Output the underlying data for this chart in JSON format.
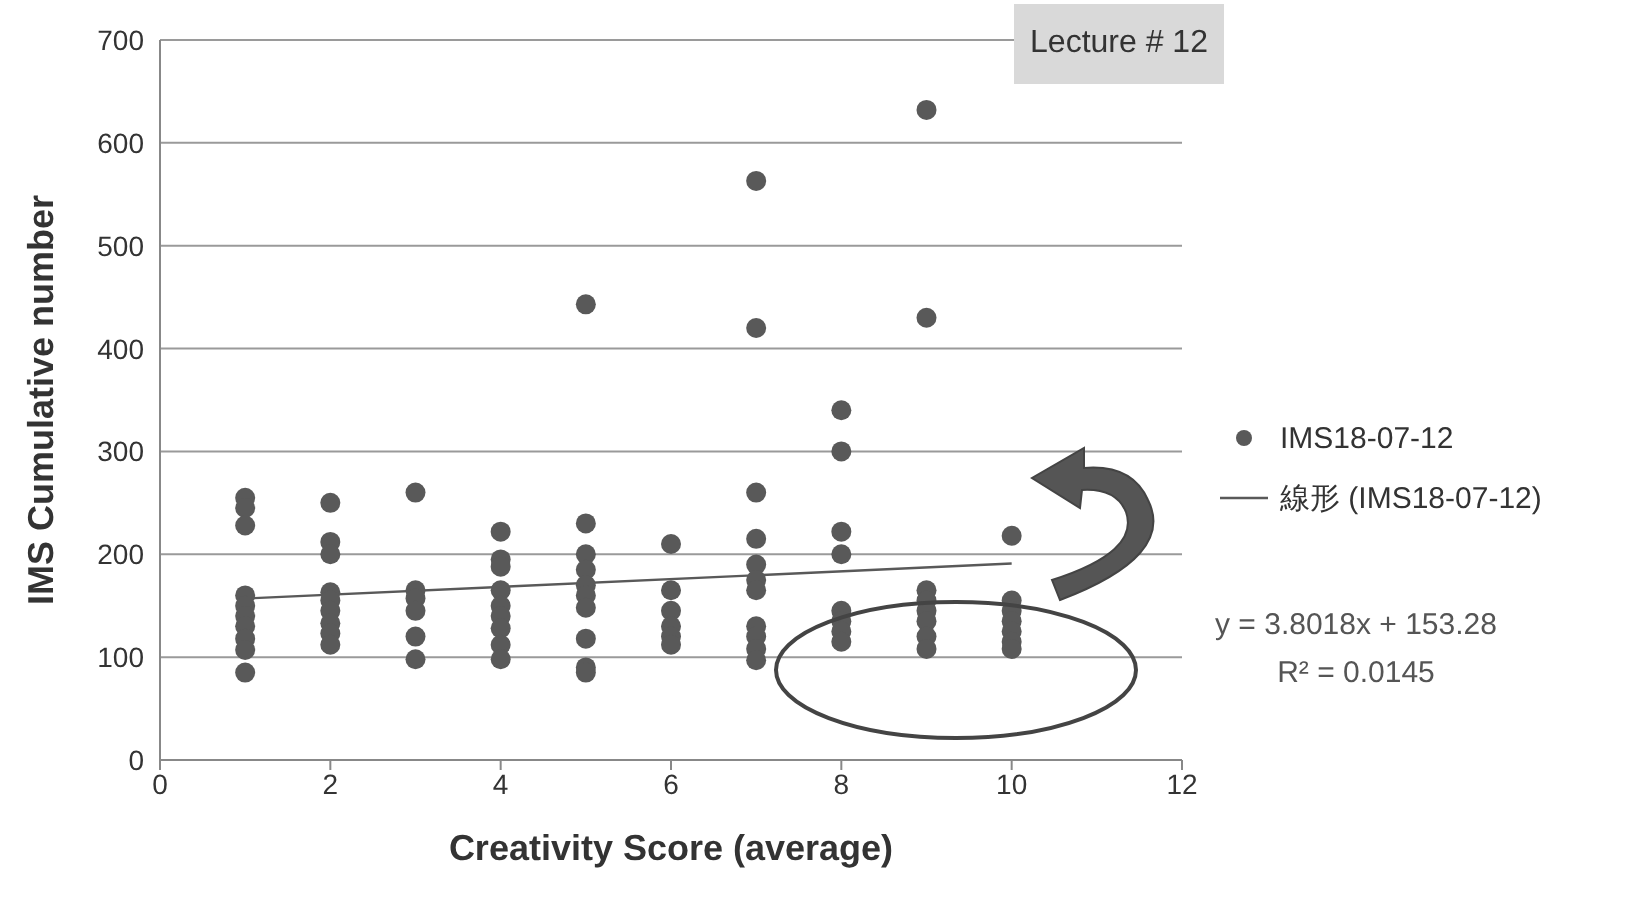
{
  "chart_data": {
    "type": "scatter",
    "xlabel": "Creativity Score (average)",
    "ylabel": "IMS Cumulative number",
    "xlim": [
      0,
      12
    ],
    "xticks": [
      0,
      2,
      4,
      6,
      8,
      10,
      12
    ],
    "ylim": [
      0,
      700
    ],
    "yticks": [
      0,
      100,
      200,
      300,
      400,
      500,
      600,
      700
    ],
    "grid": "y",
    "legend": "right",
    "annotations": [
      "Lecture # 12",
      "y = 3.8018x + 153.28",
      "R² = 0.0145"
    ],
    "series": [
      {
        "name": "IMS18-07-12",
        "marker": "circle",
        "color": "#595959",
        "x": [
          1,
          1,
          1,
          1,
          1,
          1,
          1,
          1,
          1,
          1,
          2,
          2,
          2,
          2,
          2,
          2,
          2,
          2,
          2,
          3,
          3,
          3,
          3,
          3,
          3,
          4,
          4,
          4,
          4,
          4,
          4,
          4,
          4,
          4,
          5,
          5,
          5,
          5,
          5,
          5,
          5,
          5,
          5,
          5,
          6,
          6,
          6,
          6,
          6,
          6,
          7,
          7,
          7,
          7,
          7,
          7,
          7,
          7,
          7,
          7,
          7,
          8,
          8,
          8,
          8,
          8,
          8,
          8,
          8,
          9,
          9,
          9,
          9,
          9,
          9,
          9,
          9,
          10,
          10,
          10,
          10,
          10,
          10,
          10
        ],
        "values": [
          255,
          245,
          228,
          160,
          150,
          140,
          130,
          118,
          107,
          85,
          250,
          212,
          200,
          163,
          155,
          145,
          133,
          123,
          112,
          260,
          165,
          157,
          145,
          120,
          98,
          222,
          195,
          188,
          165,
          150,
          140,
          128,
          112,
          98,
          443,
          230,
          200,
          185,
          170,
          160,
          148,
          118,
          90,
          85,
          210,
          165,
          145,
          130,
          120,
          112,
          563,
          420,
          260,
          215,
          190,
          175,
          165,
          130,
          120,
          108,
          97,
          340,
          300,
          222,
          200,
          145,
          135,
          125,
          115,
          632,
          430,
          165,
          155,
          145,
          135,
          120,
          108,
          218,
          155,
          145,
          135,
          125,
          115,
          108
        ]
      },
      {
        "name": "線形 (IMS18-07-12)",
        "type": "line",
        "color": "#595959",
        "x": [
          1,
          10
        ],
        "values": [
          157,
          191
        ]
      }
    ]
  }
}
